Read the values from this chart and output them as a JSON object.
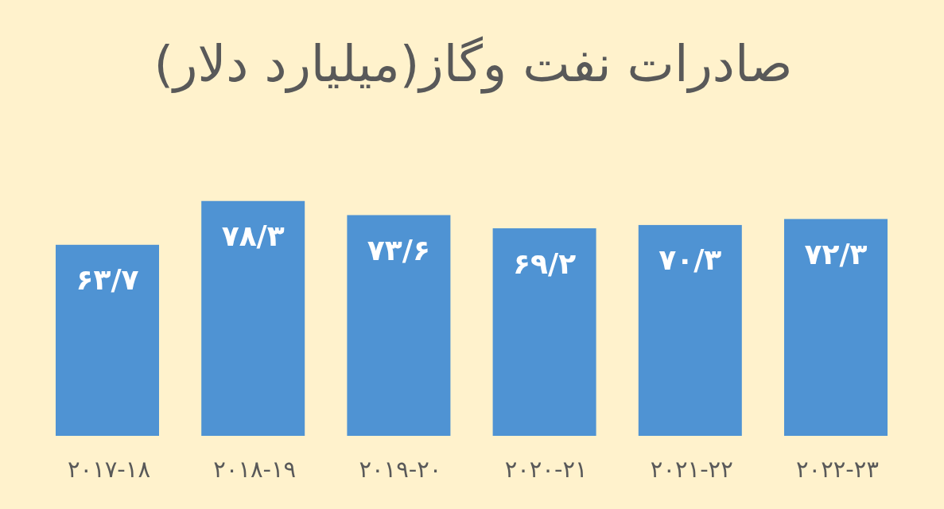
{
  "chart_data": {
    "type": "bar",
    "title": "صادرات نفت وگاز(میلیارد دلار)",
    "categories": [
      "۲۰۱۷-۱۸",
      "۲۰۱۸-۱۹",
      "۲۰۱۹-۲۰",
      "۲۰۲۰-۲۱",
      "۲۰۲۱-۲۲",
      "۲۰۲۲-۲۳"
    ],
    "values": [
      63.7,
      78.3,
      73.6,
      69.2,
      70.3,
      72.3
    ],
    "value_labels": [
      "۶۳/۷",
      "۷۸/۳",
      "۷۳/۶",
      "۶۹/۲",
      "۷۰/۳",
      "۷۲/۳"
    ],
    "color": "#4f93d3",
    "tick_labels": "x"
  }
}
